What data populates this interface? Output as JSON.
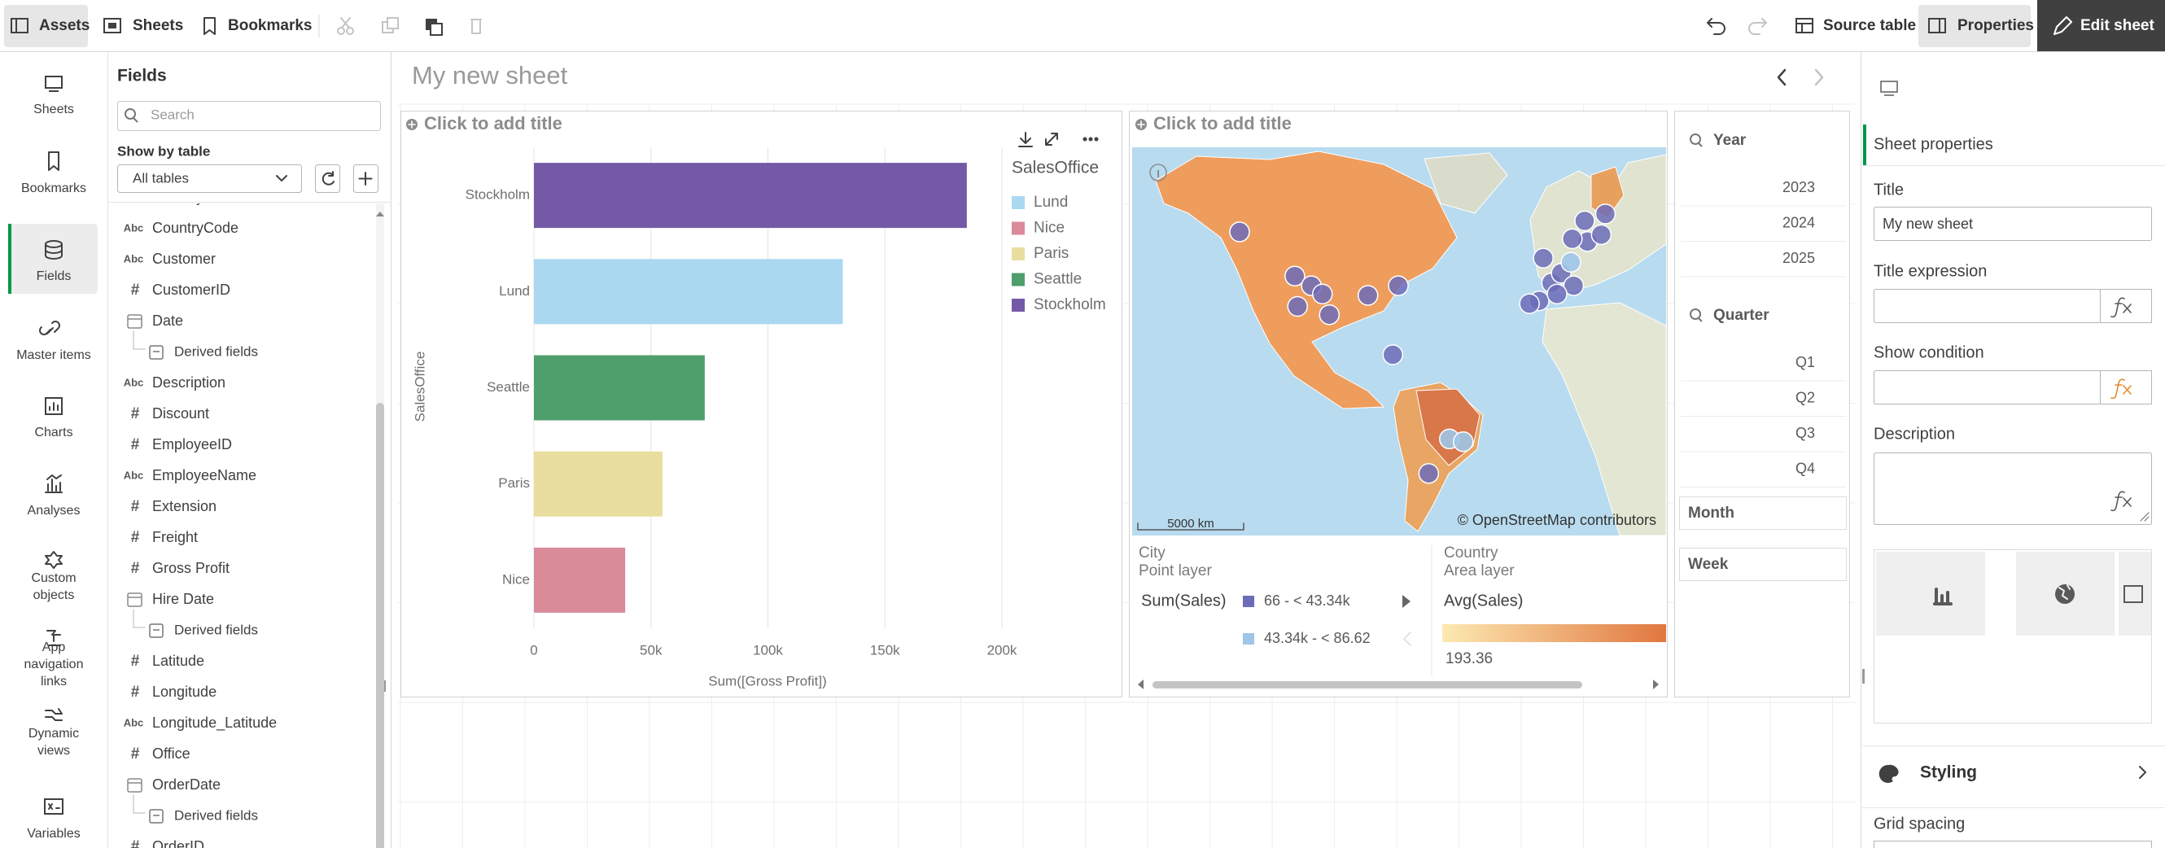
{
  "toolbar": {
    "assets": "Assets",
    "sheets": "Sheets",
    "bookmarks": "Bookmarks",
    "source_table": "Source table",
    "properties": "Properties",
    "edit_sheet": "Edit sheet"
  },
  "nav": {
    "items": [
      "Sheets",
      "Bookmarks",
      "Fields",
      "Master items",
      "Charts",
      "Analyses",
      "Custom objects",
      "App navigation links",
      "Dynamic views",
      "Variables"
    ],
    "active": 2
  },
  "fields_panel": {
    "title": "Fields",
    "search_placeholder": "Search",
    "show_by_table": "Show by table",
    "table_select": "All tables",
    "items": [
      {
        "name": "Country",
        "icon": "Abc"
      },
      {
        "name": "CountryCode",
        "icon": "Abc"
      },
      {
        "name": "Customer",
        "icon": "Abc"
      },
      {
        "name": "CustomerID",
        "icon": "#"
      },
      {
        "name": "Date",
        "kind": "date"
      },
      {
        "name": "Derived fields",
        "kind": "derived"
      },
      {
        "name": "Description",
        "icon": "Abc"
      },
      {
        "name": "Discount",
        "icon": "#"
      },
      {
        "name": "EmployeeID",
        "icon": "#"
      },
      {
        "name": "EmployeeName",
        "icon": "Abc"
      },
      {
        "name": "Extension",
        "icon": "#"
      },
      {
        "name": "Freight",
        "icon": "#"
      },
      {
        "name": "Gross Profit",
        "icon": "#"
      },
      {
        "name": "Hire Date",
        "kind": "date"
      },
      {
        "name": "Derived fields",
        "kind": "derived"
      },
      {
        "name": "Latitude",
        "icon": "#"
      },
      {
        "name": "Longitude",
        "icon": "#"
      },
      {
        "name": "Longitude_Latitude",
        "icon": "Abc"
      },
      {
        "name": "Office",
        "icon": "#"
      },
      {
        "name": "OrderDate",
        "kind": "date"
      },
      {
        "name": "Derived fields",
        "kind": "derived"
      },
      {
        "name": "OrderID",
        "icon": "#"
      }
    ]
  },
  "sheet": {
    "title": "My new sheet"
  },
  "chart_data": {
    "type": "bar",
    "orientation": "horizontal",
    "title": "Click to add title",
    "categories": [
      "Stockholm",
      "Lund",
      "Seattle",
      "Paris",
      "Nice"
    ],
    "values": [
      185000,
      132000,
      73000,
      55000,
      39000
    ],
    "colors": [
      "#7459a6",
      "#aad8f1",
      "#4e9f6c",
      "#e9dea0",
      "#d98b9a"
    ],
    "x_label": "Sum([Gross Profit])",
    "y_label": "SalesOffice",
    "xlim": [
      0,
      200000
    ],
    "xticks": [
      0,
      {
        "value": 50000,
        "label": "50k"
      },
      {
        "value": 100000,
        "label": "100k"
      },
      {
        "value": 150000,
        "label": "150k"
      },
      {
        "value": 200000,
        "label": "200k"
      }
    ],
    "grid": true,
    "legend": {
      "title": "SalesOffice",
      "items": [
        {
          "name": "Lund",
          "color": "#aad8f1"
        },
        {
          "name": "Nice",
          "color": "#d98b9a"
        },
        {
          "name": "Paris",
          "color": "#e9dea0"
        },
        {
          "name": "Seattle",
          "color": "#4e9f6c"
        },
        {
          "name": "Stockholm",
          "color": "#7459a6"
        }
      ]
    }
  },
  "map": {
    "title": "Click to add title",
    "scale": "5000 km",
    "attribution": "© OpenStreetMap contributors",
    "point_layer": {
      "name": "City",
      "kind": "Point layer",
      "measure": "Sum(Sales)",
      "bins": [
        {
          "label": "66 - < 43.34k",
          "color": "#6c6cb9"
        },
        {
          "label": "43.34k - < 86.62",
          "color": "#9fc5e8"
        }
      ]
    },
    "area_layer": {
      "name": "Country",
      "kind": "Area layer",
      "measure": "Avg(Sales)",
      "min_label": "193.36",
      "gradient": [
        "#fde9b2",
        "#e0773f"
      ]
    }
  },
  "filters": {
    "panes": [
      {
        "title": "Year",
        "values": [
          "2023",
          "2024",
          "2025"
        ]
      },
      {
        "title": "Quarter",
        "values": [
          "Q1",
          "Q2",
          "Q3",
          "Q4"
        ]
      },
      {
        "title": "Month"
      },
      {
        "title": "Week"
      }
    ]
  },
  "properties": {
    "section": "Sheet properties",
    "title_label": "Title",
    "title_value": "My new sheet",
    "title_expression": "Title expression",
    "show_condition": "Show condition",
    "description": "Description",
    "styling": "Styling",
    "grid_spacing": "Grid spacing"
  }
}
